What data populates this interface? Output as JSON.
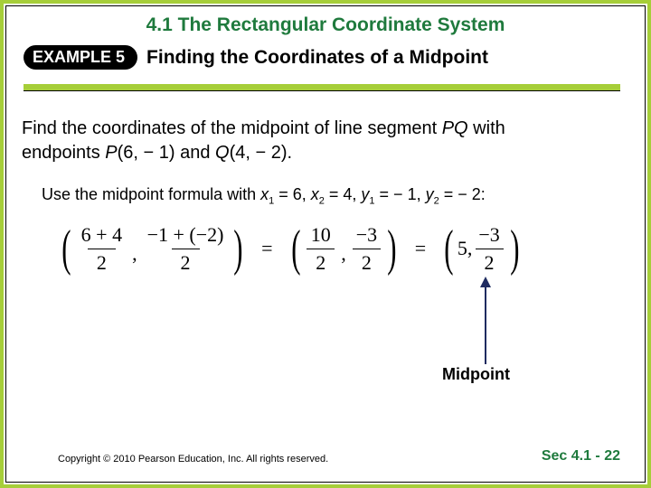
{
  "colors": {
    "border_green": "#a6ce39",
    "title_green": "#1f7a3d",
    "arrow_navy": "#1f2b60",
    "badge_bg": "#000000",
    "badge_fg": "#ffffff"
  },
  "section_title": "4.1 The Rectangular Coordinate System",
  "example_badge": "EXAMPLE 5",
  "example_title": "Finding the Coordinates of a Midpoint",
  "problem_line1": "Find the coordinates of the midpoint of line segment ",
  "seg": "PQ",
  "problem_line1b": " with",
  "problem_line2a": "endpoints ",
  "P": "P",
  "P_coords": "(6, − 1)",
  "and": " and ",
  "Q": "Q",
  "Q_coords": "(4, − 2).",
  "instr_prefix": "Use the midpoint formula with ",
  "x1var": "x",
  "x1sub": "1",
  "x1eq": " = 6, ",
  "x2var": "x",
  "x2sub": "2",
  "x2eq": " = 4, ",
  "y1var": "y",
  "y1sub": "1",
  "y1eq": " = − 1, ",
  "y2var": "y",
  "y2sub": "2",
  "y2eq": " = − 2:",
  "eq": {
    "group1": {
      "num1": "6 + 4",
      "den1": "2",
      "num2": "−1 + (−2)",
      "den2": "2"
    },
    "group2": {
      "num1": "10",
      "den1": "2",
      "num2": "−3",
      "den2": "2"
    },
    "group3": {
      "whole": "5,",
      "num": "−3",
      "den": "2"
    },
    "equals": "="
  },
  "midpoint_label": "Midpoint",
  "copyright": "Copyright © 2010 Pearson Education, Inc.  All rights reserved.",
  "pagenum": "Sec 4.1  - 22"
}
